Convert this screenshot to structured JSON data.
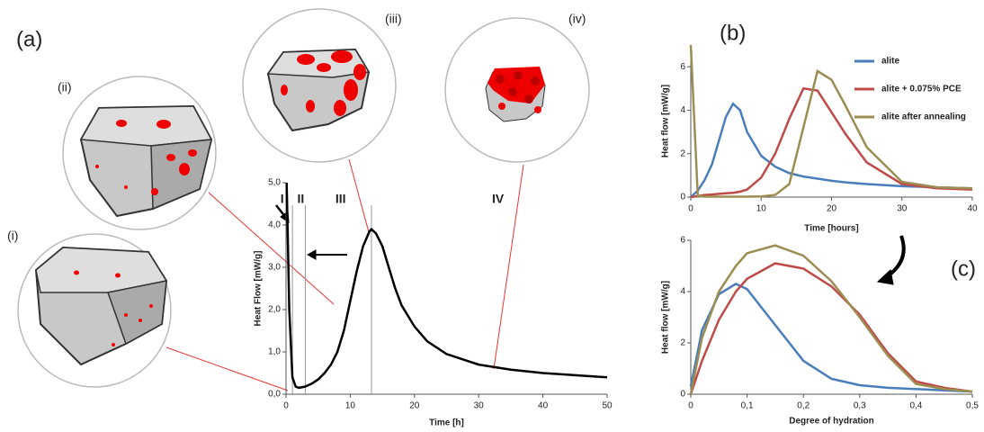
{
  "chart_data": [
    {
      "type": "line",
      "label": "(a)",
      "x_label": "Time [h]",
      "y_label": "Heat Flow [mW/g]",
      "x": [
        0.1,
        0.5,
        1,
        1.5,
        2,
        3,
        4,
        5,
        6,
        7,
        8,
        9,
        10,
        11,
        12,
        13,
        13.3,
        14,
        15,
        16,
        17,
        18,
        20,
        22,
        25,
        30,
        35,
        40,
        45,
        50
      ],
      "values": [
        5.0,
        2.0,
        0.4,
        0.18,
        0.15,
        0.18,
        0.25,
        0.35,
        0.5,
        0.7,
        1.0,
        1.5,
        2.2,
        2.9,
        3.5,
        3.85,
        3.9,
        3.8,
        3.5,
        3.0,
        2.5,
        2.1,
        1.6,
        1.25,
        0.95,
        0.7,
        0.58,
        0.5,
        0.45,
        0.4
      ],
      "color": "#000000",
      "phase_boundaries": [
        1,
        3,
        13.3
      ],
      "phase_labels": [
        "I",
        "II",
        "III",
        "IV"
      ],
      "xlim": [
        0,
        50
      ],
      "xticks": [
        0,
        10,
        20,
        30,
        40,
        50
      ],
      "ylim": [
        0,
        5
      ],
      "yticks": [
        {
          "value": 0,
          "label": "0,0"
        },
        {
          "value": 1,
          "label": "1,0"
        },
        {
          "value": 2,
          "label": "2,0"
        },
        {
          "value": 3,
          "label": "3,0"
        },
        {
          "value": 4,
          "label": "4,0"
        },
        {
          "value": 5,
          "label": "5,0"
        }
      ]
    },
    {
      "type": "line",
      "label": "(b)",
      "x_label": "Time [hours]",
      "y_label": "Heat flow [mW/g]",
      "x": [
        0,
        1,
        2,
        3,
        4,
        5,
        6,
        7,
        8,
        10,
        12,
        14,
        16,
        18,
        20,
        22,
        25,
        30,
        35,
        40
      ],
      "series": [
        {
          "name": "alite",
          "color": "#4a7ebb",
          "values": [
            0,
            0.3,
            0.8,
            1.5,
            2.6,
            3.7,
            4.3,
            4.0,
            3.0,
            1.9,
            1.4,
            1.1,
            0.95,
            0.85,
            0.75,
            0.68,
            0.6,
            0.5,
            0.45,
            0.4
          ]
        },
        {
          "name": "alite + 0.075% PCE",
          "color": "#be4b48",
          "values": [
            0,
            0.05,
            0.1,
            0.12,
            0.15,
            0.18,
            0.2,
            0.25,
            0.35,
            0.9,
            2.0,
            3.6,
            5.0,
            4.9,
            3.9,
            2.9,
            1.6,
            0.6,
            0.4,
            0.35
          ]
        },
        {
          "name": "alite after annealing",
          "color": "#9c8d52",
          "values": [
            7,
            0.05,
            0.02,
            0.02,
            0.02,
            0.02,
            0.02,
            0.02,
            0.02,
            0.03,
            0.1,
            0.6,
            3.2,
            5.8,
            5.4,
            4.2,
            2.3,
            0.7,
            0.45,
            0.4
          ]
        }
      ],
      "xlim": [
        0,
        40
      ],
      "xticks": [
        0,
        10,
        20,
        30,
        40
      ],
      "ylim": [
        0,
        7
      ],
      "yticks": [
        0,
        2,
        4,
        6
      ]
    },
    {
      "type": "line",
      "label": "(c)",
      "x_label": "Degree of hydration",
      "y_label": "Heat flow [mW/g]",
      "x": [
        0,
        0.02,
        0.05,
        0.08,
        0.1,
        0.15,
        0.2,
        0.25,
        0.3,
        0.35,
        0.4,
        0.45,
        0.5
      ],
      "series": [
        {
          "color": "#4a7ebb",
          "values": [
            0.3,
            2.5,
            3.9,
            4.3,
            4.1,
            2.7,
            1.3,
            0.6,
            0.35,
            0.25,
            0.2,
            0.15,
            0.1
          ]
        },
        {
          "color": "#be4b48",
          "values": [
            0,
            1.3,
            2.9,
            4.0,
            4.5,
            5.1,
            4.9,
            4.2,
            3.1,
            1.6,
            0.5,
            0.25,
            0.1
          ]
        },
        {
          "color": "#9c8d52",
          "values": [
            0,
            2.2,
            4.0,
            5.0,
            5.5,
            5.8,
            5.4,
            4.4,
            3.0,
            1.5,
            0.4,
            0.2,
            0.1
          ]
        }
      ],
      "xlim": [
        0,
        0.5
      ],
      "xticks": [
        0,
        {
          "value": 0.1,
          "label": "0,1"
        },
        {
          "value": 0.2,
          "label": "0,2"
        },
        {
          "value": 0.3,
          "label": "0,3"
        },
        {
          "value": 0.4,
          "label": "0,4"
        },
        {
          "value": 0.5,
          "label": "0,5"
        }
      ],
      "ylim": [
        0,
        6
      ],
      "yticks": [
        0,
        2,
        4,
        6
      ]
    }
  ],
  "illustrations": [
    "(i)",
    "(ii)",
    "(iii)",
    "(iv)"
  ]
}
